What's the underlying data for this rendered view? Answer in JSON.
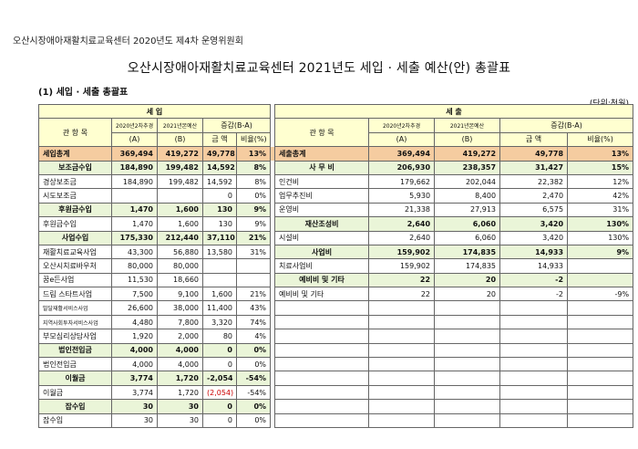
{
  "header_caption": "오산시장애아재활치료교육센터 2020년도 제4차 운영위원회",
  "title": "오산시장애아재활치료교육센터 2021년도 세입 · 세출 예산(안) 총괄표",
  "section": "(1) 세입 · 세출 총괄표",
  "unit": "(단위:천원)",
  "income": {
    "group_label": "세 입",
    "col_account": "관 항 목",
    "col_2020": "2020년2차추경",
    "col_2020_sub": "(A)",
    "col_2021": "2021년본예산",
    "col_2021_sub": "(B)",
    "col_change": "증감(B-A)",
    "col_amount": "금 액",
    "col_ratio": "비율(%)",
    "rows": [
      {
        "name": "세입총계",
        "a": "369,494",
        "b": "419,272",
        "amount": "49,778",
        "ratio": "13%"
      },
      {
        "name": "보조금수입",
        "a": "184,890",
        "b": "199,482",
        "amount": "14,592",
        "ratio": "8%"
      },
      {
        "name": "경상보조금",
        "a": "184,890",
        "b": "199,482",
        "amount": "14,592",
        "ratio": "8%"
      },
      {
        "name": "시도보조금",
        "a": "",
        "b": "",
        "amount": "0",
        "ratio": "0%"
      },
      {
        "name": "후원금수입",
        "a": "1,470",
        "b": "1,600",
        "amount": "130",
        "ratio": "9%"
      },
      {
        "name": "후원금수입",
        "a": "1,470",
        "b": "1,600",
        "amount": "130",
        "ratio": "9%"
      },
      {
        "name": "사업수입",
        "a": "175,330",
        "b": "212,440",
        "amount": "37,110",
        "ratio": "21%"
      },
      {
        "name": "재활치료교육사업",
        "a": "43,300",
        "b": "56,880",
        "amount": "13,580",
        "ratio": "31%"
      },
      {
        "name": "오산시치료바우처",
        "a": "80,000",
        "b": "80,000",
        "amount": "",
        "ratio": ""
      },
      {
        "name": "꿈e든사업",
        "a": "11,530",
        "b": "18,660",
        "amount": "",
        "ratio": ""
      },
      {
        "name": "드림 스타트사업",
        "a": "7,500",
        "b": "9,100",
        "amount": "1,600",
        "ratio": "21%"
      },
      {
        "name": "발달재활서비스사업",
        "a": "26,600",
        "b": "38,000",
        "amount": "11,400",
        "ratio": "43%"
      },
      {
        "name": "지역사회투자서비스사업",
        "a": "4,480",
        "b": "7,800",
        "amount": "3,320",
        "ratio": "74%"
      },
      {
        "name": "부모심리상담사업",
        "a": "1,920",
        "b": "2,000",
        "amount": "80",
        "ratio": "4%"
      },
      {
        "name": "법인전입금",
        "a": "4,000",
        "b": "4,000",
        "amount": "0",
        "ratio": "0%"
      },
      {
        "name": "법인전입금",
        "a": "4,000",
        "b": "4,000",
        "amount": "0",
        "ratio": "0%"
      },
      {
        "name": "이월금",
        "a": "3,774",
        "b": "1,720",
        "amount": "-2,054",
        "ratio": "-54%"
      },
      {
        "name": "이월금",
        "a": "3,774",
        "b": "1,720",
        "amount": "(2,054)",
        "ratio": "-54%"
      },
      {
        "name": "잡수입",
        "a": "30",
        "b": "30",
        "amount": "0",
        "ratio": "0%"
      },
      {
        "name": "잡수입",
        "a": "30",
        "b": "30",
        "amount": "0",
        "ratio": "0%"
      }
    ]
  },
  "expense": {
    "group_label": "세 출",
    "col_account": "관 항 목",
    "col_2020": "2020년2차추경",
    "col_2020_sub": "(A)",
    "col_2021": "2021년본예산",
    "col_2021_sub": "(B)",
    "col_change": "증감(B-A)",
    "col_amount": "금 액",
    "col_ratio": "비율(%)",
    "rows": [
      {
        "name": "세출총계",
        "a": "369,494",
        "b": "419,272",
        "amount": "49,778",
        "ratio": "13%"
      },
      {
        "name": "사 무 비",
        "a": "206,930",
        "b": "238,357",
        "amount": "31,427",
        "ratio": "15%"
      },
      {
        "name": "인건비",
        "a": "179,662",
        "b": "202,044",
        "amount": "22,382",
        "ratio": "12%"
      },
      {
        "name": "업무추진비",
        "a": "5,930",
        "b": "8,400",
        "amount": "2,470",
        "ratio": "42%"
      },
      {
        "name": "운영비",
        "a": "21,338",
        "b": "27,913",
        "amount": "6,575",
        "ratio": "31%"
      },
      {
        "name": "재산조성비",
        "a": "2,640",
        "b": "6,060",
        "amount": "3,420",
        "ratio": "130%"
      },
      {
        "name": "시설비",
        "a": "2,640",
        "b": "6,060",
        "amount": "3,420",
        "ratio": "130%"
      },
      {
        "name": "사업비",
        "a": "159,902",
        "b": "174,835",
        "amount": "14,933",
        "ratio": "9%"
      },
      {
        "name": "치료사업비",
        "a": "159,902",
        "b": "174,835",
        "amount": "14,933",
        "ratio": ""
      },
      {
        "name": "예비비 및 기타",
        "a": "22",
        "b": "20",
        "amount": "-2",
        "ratio": ""
      },
      {
        "name": "예비비 및 기타",
        "a": "22",
        "b": "20",
        "amount": "-2",
        "ratio": "-9%"
      }
    ]
  }
}
